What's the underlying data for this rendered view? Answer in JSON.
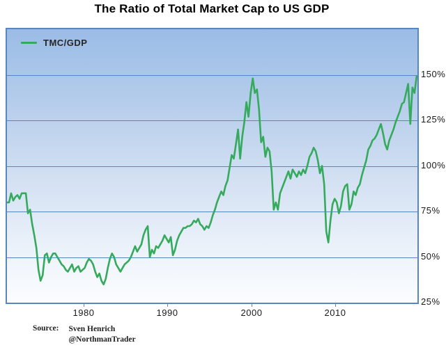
{
  "title": "The Ratio of Total Market Cap to US GDP",
  "legend": {
    "label": "TMC/GDP"
  },
  "source": {
    "label": "Source:",
    "line1": "Sven Henrich",
    "line2": "@NorthmanTrader"
  },
  "colors": {
    "series_green": "#35aa5c",
    "plot_border": "#5886bf",
    "gridline": "#5585c2",
    "plot_bg_top": "#9abce6",
    "plot_bg_bottom": "#fbfdff",
    "axis_text": "#1a1a1a",
    "title_text": "#000000"
  },
  "chart_data": {
    "type": "line",
    "title": "The Ratio of Total Market Cap to US GDP",
    "xlabel": "",
    "ylabel": "TMC/GDP (%)",
    "legend_position": "top-left",
    "grid": "horizontal",
    "xlim": [
      1970.75,
      2019.6
    ],
    "ylim": [
      25,
      175
    ],
    "x_ticks": [
      1980,
      1990,
      2000,
      2010
    ],
    "x_tick_labels": [
      "1980",
      "1990",
      "2000",
      "2010"
    ],
    "y_ticks": [
      150,
      125,
      100,
      75,
      50,
      25
    ],
    "y_tick_labels": [
      "150%",
      "125%",
      "100%",
      "75%",
      "50%",
      "25%"
    ],
    "gridline_values": [
      150,
      125,
      100,
      75,
      50
    ],
    "series": [
      {
        "name": "TMC/GDP",
        "points": [
          [
            1970.75,
            80
          ],
          [
            1971.0,
            80
          ],
          [
            1971.25,
            85
          ],
          [
            1971.5,
            81
          ],
          [
            1971.75,
            83
          ],
          [
            1972.0,
            84
          ],
          [
            1972.25,
            82
          ],
          [
            1972.5,
            85
          ],
          [
            1972.75,
            85
          ],
          [
            1973.0,
            85
          ],
          [
            1973.25,
            74
          ],
          [
            1973.5,
            76
          ],
          [
            1973.75,
            68
          ],
          [
            1974.0,
            62
          ],
          [
            1974.25,
            55
          ],
          [
            1974.5,
            43
          ],
          [
            1974.75,
            37
          ],
          [
            1975.0,
            40
          ],
          [
            1975.25,
            51
          ],
          [
            1975.5,
            52
          ],
          [
            1975.75,
            47
          ],
          [
            1976.0,
            50
          ],
          [
            1976.25,
            52
          ],
          [
            1976.5,
            52
          ],
          [
            1976.75,
            50
          ],
          [
            1977.0,
            48
          ],
          [
            1977.25,
            46
          ],
          [
            1977.5,
            45
          ],
          [
            1977.75,
            43
          ],
          [
            1978.0,
            42
          ],
          [
            1978.25,
            44
          ],
          [
            1978.5,
            46
          ],
          [
            1978.75,
            42
          ],
          [
            1979.0,
            44
          ],
          [
            1979.25,
            45
          ],
          [
            1979.5,
            42
          ],
          [
            1979.75,
            43
          ],
          [
            1980.0,
            44
          ],
          [
            1980.25,
            47
          ],
          [
            1980.5,
            49
          ],
          [
            1980.75,
            48
          ],
          [
            1981.0,
            46
          ],
          [
            1981.25,
            42
          ],
          [
            1981.5,
            39
          ],
          [
            1981.75,
            41
          ],
          [
            1982.0,
            37
          ],
          [
            1982.25,
            35
          ],
          [
            1982.5,
            38
          ],
          [
            1982.75,
            44
          ],
          [
            1983.0,
            49
          ],
          [
            1983.25,
            52
          ],
          [
            1983.5,
            50
          ],
          [
            1983.75,
            46
          ],
          [
            1984.0,
            44
          ],
          [
            1984.25,
            42
          ],
          [
            1984.5,
            44
          ],
          [
            1984.75,
            46
          ],
          [
            1985.0,
            47
          ],
          [
            1985.25,
            48
          ],
          [
            1985.5,
            50
          ],
          [
            1985.75,
            53
          ],
          [
            1986.0,
            56
          ],
          [
            1986.25,
            53
          ],
          [
            1986.5,
            55
          ],
          [
            1986.75,
            57
          ],
          [
            1987.0,
            62
          ],
          [
            1987.25,
            65
          ],
          [
            1987.5,
            67
          ],
          [
            1987.75,
            50
          ],
          [
            1988.0,
            54
          ],
          [
            1988.25,
            52
          ],
          [
            1988.5,
            56
          ],
          [
            1988.75,
            55
          ],
          [
            1989.0,
            57
          ],
          [
            1989.25,
            59
          ],
          [
            1989.5,
            62
          ],
          [
            1989.75,
            60
          ],
          [
            1990.0,
            58
          ],
          [
            1990.25,
            61
          ],
          [
            1990.5,
            51
          ],
          [
            1990.75,
            54
          ],
          [
            1991.0,
            59
          ],
          [
            1991.25,
            62
          ],
          [
            1991.5,
            64
          ],
          [
            1991.75,
            66
          ],
          [
            1992.0,
            66
          ],
          [
            1992.25,
            67
          ],
          [
            1992.5,
            67
          ],
          [
            1992.75,
            68
          ],
          [
            1993.0,
            70
          ],
          [
            1993.25,
            69
          ],
          [
            1993.5,
            71
          ],
          [
            1993.75,
            68
          ],
          [
            1994.0,
            67
          ],
          [
            1994.25,
            65
          ],
          [
            1994.5,
            67
          ],
          [
            1994.75,
            66
          ],
          [
            1995.0,
            69
          ],
          [
            1995.25,
            73
          ],
          [
            1995.5,
            76
          ],
          [
            1995.75,
            80
          ],
          [
            1996.0,
            83
          ],
          [
            1996.25,
            86
          ],
          [
            1996.5,
            84
          ],
          [
            1996.75,
            89
          ],
          [
            1997.0,
            92
          ],
          [
            1997.25,
            99
          ],
          [
            1997.5,
            106
          ],
          [
            1997.75,
            104
          ],
          [
            1998.0,
            112
          ],
          [
            1998.25,
            120
          ],
          [
            1998.5,
            104
          ],
          [
            1998.75,
            116
          ],
          [
            1999.0,
            124
          ],
          [
            1999.25,
            135
          ],
          [
            1999.5,
            127
          ],
          [
            1999.75,
            140
          ],
          [
            2000.0,
            148
          ],
          [
            2000.25,
            140
          ],
          [
            2000.5,
            142
          ],
          [
            2000.75,
            131
          ],
          [
            2001.0,
            113
          ],
          [
            2001.25,
            116
          ],
          [
            2001.5,
            105
          ],
          [
            2001.75,
            110
          ],
          [
            2002.0,
            108
          ],
          [
            2002.25,
            97
          ],
          [
            2002.5,
            76
          ],
          [
            2002.75,
            80
          ],
          [
            2003.0,
            76
          ],
          [
            2003.25,
            85
          ],
          [
            2003.5,
            88
          ],
          [
            2003.75,
            91
          ],
          [
            2004.0,
            94
          ],
          [
            2004.25,
            97
          ],
          [
            2004.5,
            93
          ],
          [
            2004.75,
            98
          ],
          [
            2005.0,
            96
          ],
          [
            2005.25,
            94
          ],
          [
            2005.5,
            97
          ],
          [
            2005.75,
            95
          ],
          [
            2006.0,
            98
          ],
          [
            2006.25,
            96
          ],
          [
            2006.5,
            100
          ],
          [
            2006.75,
            105
          ],
          [
            2007.0,
            107
          ],
          [
            2007.25,
            110
          ],
          [
            2007.5,
            108
          ],
          [
            2007.75,
            103
          ],
          [
            2008.0,
            96
          ],
          [
            2008.25,
            100
          ],
          [
            2008.5,
            90
          ],
          [
            2008.75,
            64
          ],
          [
            2009.0,
            58
          ],
          [
            2009.25,
            70
          ],
          [
            2009.5,
            79
          ],
          [
            2009.75,
            82
          ],
          [
            2010.0,
            80
          ],
          [
            2010.25,
            74
          ],
          [
            2010.5,
            78
          ],
          [
            2010.75,
            86
          ],
          [
            2011.0,
            89
          ],
          [
            2011.25,
            90
          ],
          [
            2011.5,
            76
          ],
          [
            2011.75,
            79
          ],
          [
            2012.0,
            86
          ],
          [
            2012.25,
            84
          ],
          [
            2012.5,
            88
          ],
          [
            2012.75,
            90
          ],
          [
            2013.0,
            95
          ],
          [
            2013.25,
            99
          ],
          [
            2013.5,
            103
          ],
          [
            2013.75,
            109
          ],
          [
            2014.0,
            111
          ],
          [
            2014.25,
            114
          ],
          [
            2014.5,
            115
          ],
          [
            2014.75,
            117
          ],
          [
            2015.0,
            120
          ],
          [
            2015.25,
            123
          ],
          [
            2015.5,
            118
          ],
          [
            2015.75,
            112
          ],
          [
            2016.0,
            109
          ],
          [
            2016.25,
            114
          ],
          [
            2016.5,
            117
          ],
          [
            2016.75,
            120
          ],
          [
            2017.0,
            124
          ],
          [
            2017.25,
            127
          ],
          [
            2017.5,
            130
          ],
          [
            2017.75,
            134
          ],
          [
            2018.0,
            135
          ],
          [
            2018.25,
            140
          ],
          [
            2018.5,
            145
          ],
          [
            2018.75,
            123
          ],
          [
            2019.0,
            143
          ],
          [
            2019.25,
            140
          ],
          [
            2019.5,
            149
          ]
        ]
      }
    ]
  }
}
